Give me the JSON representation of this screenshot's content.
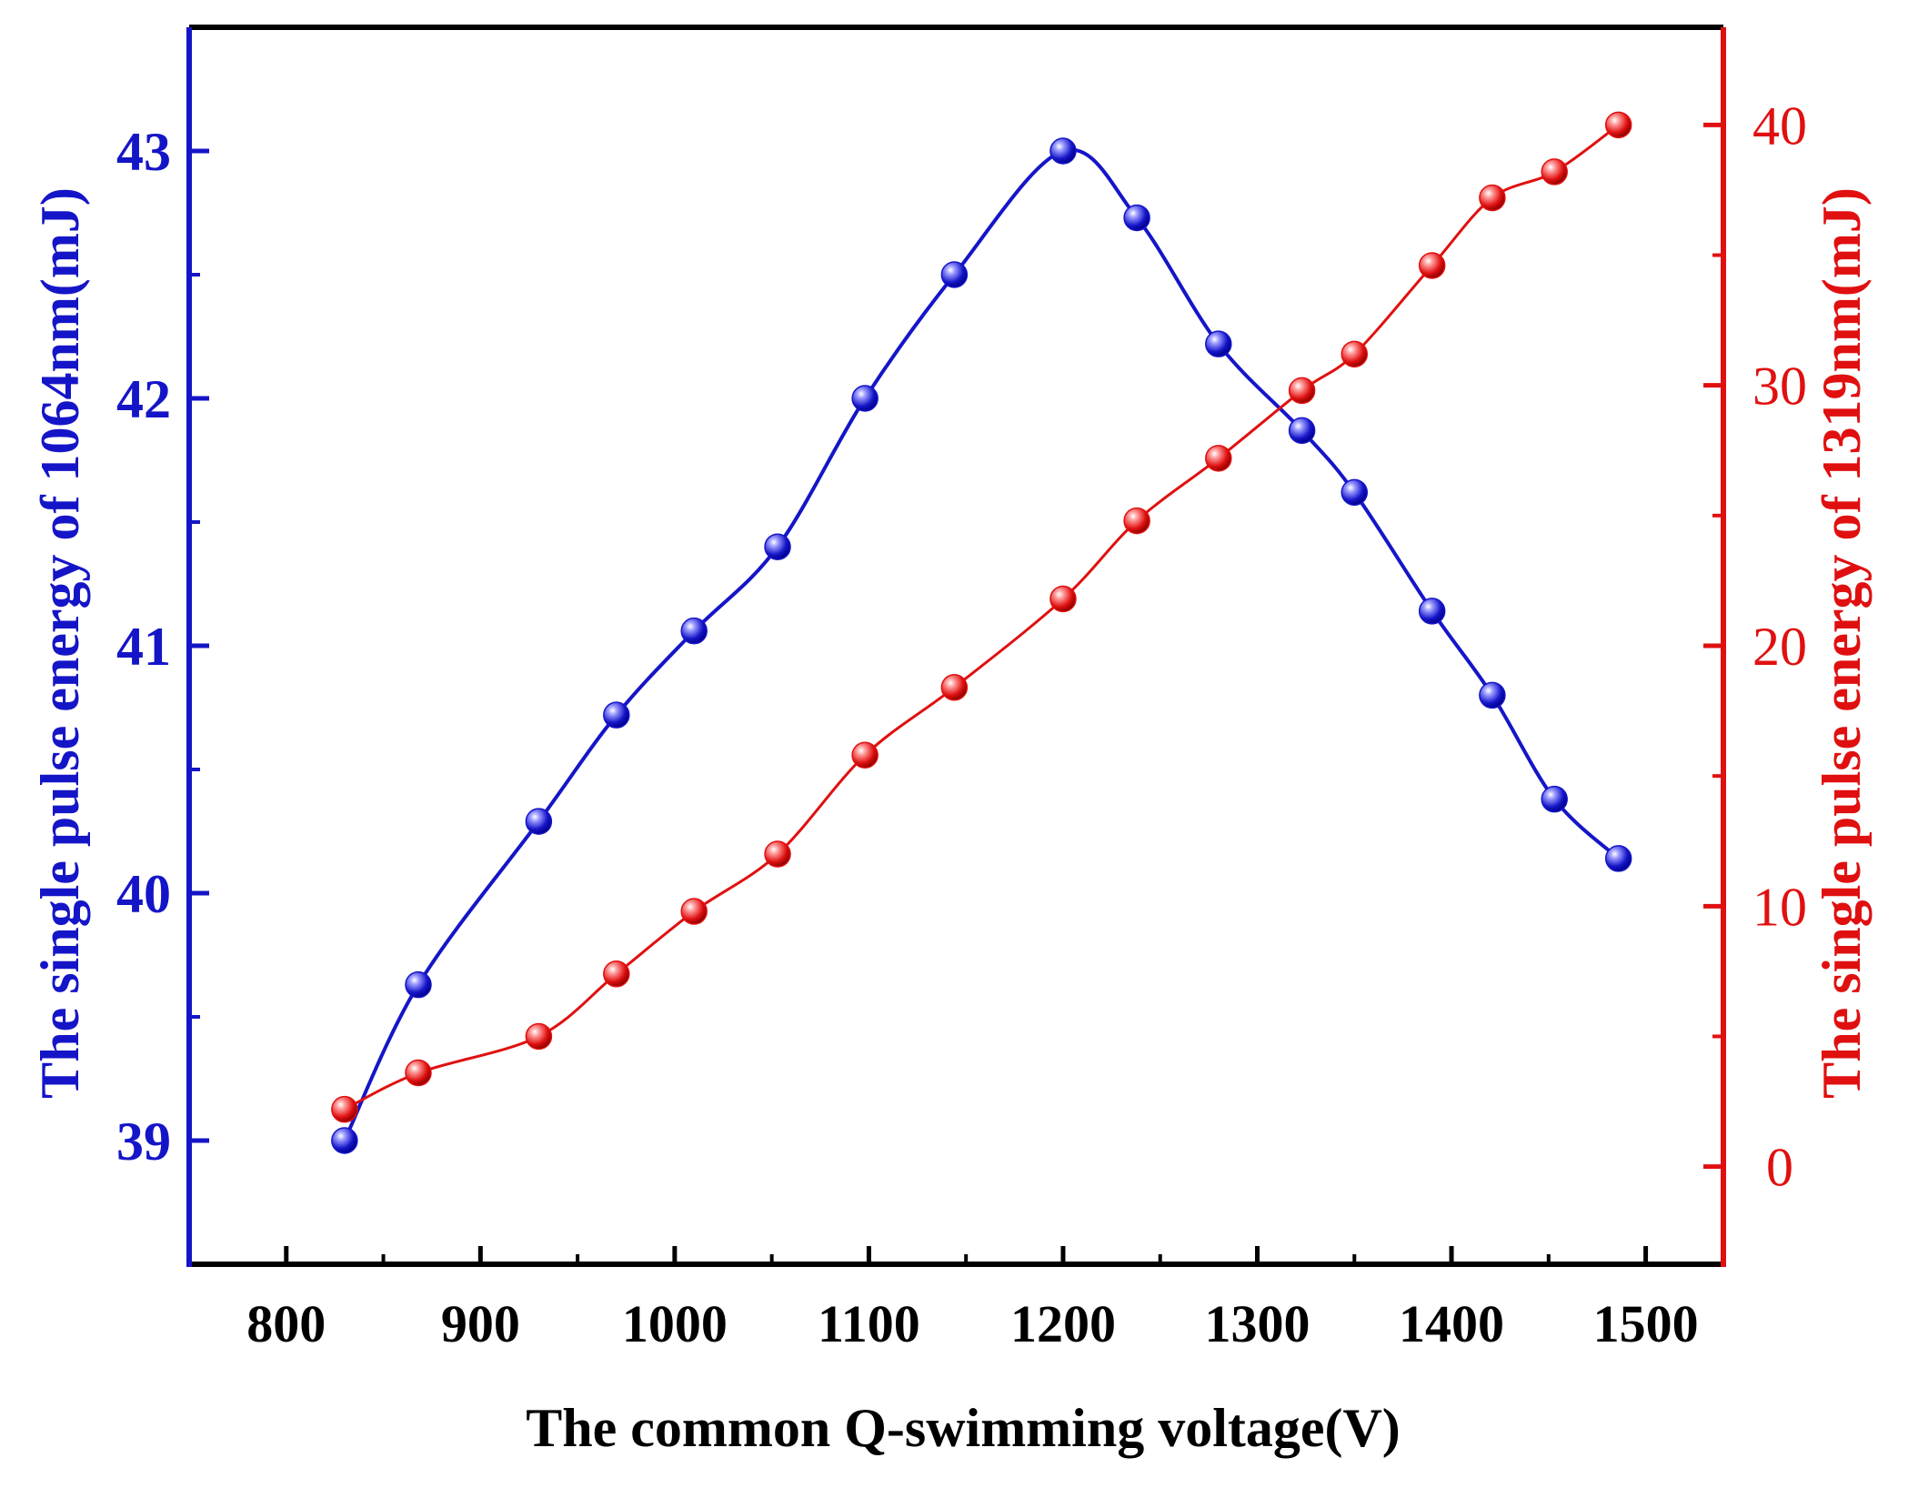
{
  "chart_data": {
    "type": "line",
    "title": "",
    "xlabel": "The common Q-swimming voltage(V)",
    "ylabel_left": "The single pulse energy of 1064nm(mJ)",
    "ylabel_right": "The single pulse energy of 1319nm(mJ)",
    "xlim": [
      750,
      1540
    ],
    "ylim_left": [
      38.5,
      43.5
    ],
    "ylim_right": [
      -3.75,
      43.75
    ],
    "x_ticks": [
      800,
      900,
      1000,
      1100,
      1200,
      1300,
      1400,
      1500
    ],
    "x_tick_labels": [
      "800",
      "900",
      "1000",
      "1100",
      "1200",
      "1300",
      "1400",
      "1500"
    ],
    "y_left_ticks": [
      39,
      40,
      41,
      42,
      43
    ],
    "y_left_tick_labels": [
      "39",
      "40",
      "41",
      "42",
      "43"
    ],
    "y_right_ticks": [
      0,
      10,
      20,
      30,
      40
    ],
    "y_right_tick_labels": [
      "0",
      "10",
      "20",
      "30",
      "40"
    ],
    "grid": false,
    "legend": "none",
    "colors": {
      "left": "#1515c8",
      "right": "#e01010"
    },
    "series": [
      {
        "name": "1064nm",
        "axis": "left",
        "x": [
          830,
          868,
          930,
          970,
          1010,
          1053,
          1098,
          1144,
          1200,
          1238,
          1280,
          1323,
          1350,
          1390,
          1421,
          1453,
          1486
        ],
        "values": [
          39.0,
          39.63,
          40.29,
          40.72,
          41.06,
          41.4,
          42.0,
          42.5,
          43.0,
          42.73,
          42.22,
          41.87,
          41.62,
          41.14,
          40.8,
          40.38,
          40.14
        ]
      },
      {
        "name": "1319nm",
        "axis": "right",
        "x": [
          830,
          868,
          930,
          970,
          1010,
          1053,
          1098,
          1144,
          1200,
          1238,
          1280,
          1323,
          1350,
          1390,
          1421,
          1453,
          1486
        ],
        "values": [
          2.2,
          3.6,
          5.0,
          7.4,
          9.8,
          12.0,
          15.8,
          18.4,
          21.8,
          24.8,
          27.2,
          29.8,
          31.2,
          34.6,
          37.2,
          38.2,
          40.0
        ]
      }
    ]
  }
}
